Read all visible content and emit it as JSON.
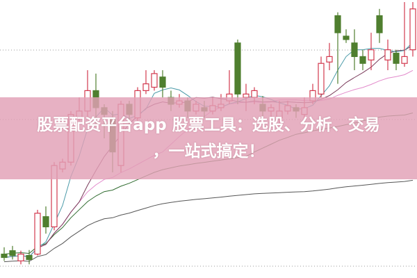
{
  "banner": {
    "line1": "股票配资平台app 股票工具：选股、分析、交易",
    "line2": "，一站式搞定！"
  },
  "chart_data": {
    "type": "candlestick",
    "title": "",
    "grid": "dotted horizontal",
    "colors": {
      "up": "#d2384e",
      "down": "#4f7f2f",
      "ma5": "#4a9aa8",
      "ma10": "#7a3a5a",
      "ma20": "#e28acb",
      "ma30": "#2f6b2f",
      "ma60": "#555555"
    },
    "candles": [
      {
        "o": 30,
        "c": 25,
        "h": 40,
        "l": 20
      },
      {
        "o": 35,
        "c": 28,
        "h": 42,
        "l": 22
      },
      {
        "o": 20,
        "c": 30,
        "h": 35,
        "l": 15
      },
      {
        "o": 28,
        "c": 22,
        "h": 36,
        "l": 15
      },
      {
        "o": 30,
        "c": 90,
        "h": 95,
        "l": 28
      },
      {
        "o": 85,
        "c": 70,
        "h": 100,
        "l": 60
      },
      {
        "o": 70,
        "c": 160,
        "h": 165,
        "l": 65
      },
      {
        "o": 155,
        "c": 165,
        "h": 170,
        "l": 150
      },
      {
        "o": 165,
        "c": 235,
        "h": 240,
        "l": 160
      },
      {
        "o": 230,
        "c": 240,
        "h": 260,
        "l": 225
      },
      {
        "o": 240,
        "c": 270,
        "h": 300,
        "l": 230
      },
      {
        "o": 270,
        "c": 245,
        "h": 295,
        "l": 220
      },
      {
        "o": 245,
        "c": 235,
        "h": 250,
        "l": 200
      },
      {
        "o": 230,
        "c": 180,
        "h": 240,
        "l": 150
      },
      {
        "o": 160,
        "c": 250,
        "h": 255,
        "l": 150
      },
      {
        "o": 250,
        "c": 235,
        "h": 255,
        "l": 220
      },
      {
        "o": 230,
        "c": 270,
        "h": 275,
        "l": 225
      },
      {
        "o": 270,
        "c": 280,
        "h": 300,
        "l": 265
      },
      {
        "o": 275,
        "c": 295,
        "h": 300,
        "l": 270
      },
      {
        "o": 290,
        "c": 275,
        "h": 300,
        "l": 260
      },
      {
        "o": 260,
        "c": 250,
        "h": 270,
        "l": 240
      },
      {
        "o": 250,
        "c": 255,
        "h": 265,
        "l": 245
      },
      {
        "o": 255,
        "c": 240,
        "h": 260,
        "l": 230
      },
      {
        "o": 240,
        "c": 250,
        "h": 255,
        "l": 235
      },
      {
        "o": 245,
        "c": 240,
        "h": 255,
        "l": 230
      },
      {
        "o": 240,
        "c": 248,
        "h": 260,
        "l": 235
      },
      {
        "o": 245,
        "c": 250,
        "h": 265,
        "l": 240
      },
      {
        "o": 255,
        "c": 265,
        "h": 300,
        "l": 250
      },
      {
        "o": 340,
        "c": 265,
        "h": 345,
        "l": 250
      },
      {
        "o": 260,
        "c": 265,
        "h": 280,
        "l": 240
      },
      {
        "o": 260,
        "c": 270,
        "h": 275,
        "l": 250
      },
      {
        "o": 250,
        "c": 240,
        "h": 262,
        "l": 230
      },
      {
        "o": 240,
        "c": 245,
        "h": 250,
        "l": 230
      },
      {
        "o": 230,
        "c": 240,
        "h": 255,
        "l": 220
      },
      {
        "o": 240,
        "c": 248,
        "h": 255,
        "l": 235
      },
      {
        "o": 245,
        "c": 240,
        "h": 250,
        "l": 230
      },
      {
        "o": 235,
        "c": 245,
        "h": 260,
        "l": 225
      },
      {
        "o": 255,
        "c": 270,
        "h": 280,
        "l": 250
      },
      {
        "o": 265,
        "c": 310,
        "h": 320,
        "l": 260
      },
      {
        "o": 312,
        "c": 320,
        "h": 340,
        "l": 300
      },
      {
        "o": 380,
        "c": 355,
        "h": 385,
        "l": 280
      },
      {
        "o": 350,
        "c": 345,
        "h": 360,
        "l": 340
      },
      {
        "o": 340,
        "c": 320,
        "h": 360,
        "l": 300
      },
      {
        "o": 320,
        "c": 310,
        "h": 330,
        "l": 300
      },
      {
        "o": 315,
        "c": 330,
        "h": 355,
        "l": 300
      },
      {
        "o": 380,
        "c": 355,
        "h": 390,
        "l": 340
      },
      {
        "o": 315,
        "c": 330,
        "h": 345,
        "l": 300
      },
      {
        "o": 325,
        "c": 310,
        "h": 330,
        "l": 300
      },
      {
        "o": 310,
        "c": 320,
        "h": 400,
        "l": 305
      },
      {
        "o": 330,
        "c": 390,
        "h": 400,
        "l": 320
      }
    ]
  }
}
